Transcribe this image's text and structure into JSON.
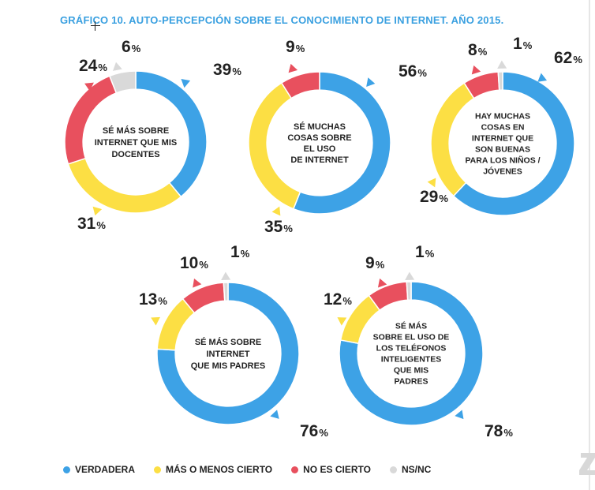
{
  "title": "GRÁFICO 10. AUTO-PERCEPCIÓN SOBRE EL CONOCIMIENTO DE INTERNET. AÑO 2015.",
  "colors": {
    "verdadera": "#3da2e6",
    "mas_o_menos": "#fcdf44",
    "no_es_cierto": "#e8505e",
    "nsnc": "#d9d9d9",
    "title": "#3aa0e0"
  },
  "legend": [
    {
      "label": "VERDADERA",
      "color_key": "verdadera"
    },
    {
      "label": "MÁS O MENOS CIERTO",
      "color_key": "mas_o_menos"
    },
    {
      "label": "NO ES CIERTO",
      "color_key": "no_es_cierto"
    },
    {
      "label": "NS/NC",
      "color_key": "nsnc"
    }
  ],
  "chart_data": [
    {
      "type": "pie",
      "title": "SÉ MÁS SOBRE INTERNET QUE MIS DOCENTES",
      "categories": [
        "VERDADERA",
        "MÁS O MENOS CIERTO",
        "NO ES CIERTO",
        "NS/NC"
      ],
      "values": [
        39,
        31,
        24,
        6
      ],
      "unit": "%"
    },
    {
      "type": "pie",
      "title": "SÉ MUCHAS COSAS SOBRE EL USO DE INTERNET",
      "categories": [
        "VERDADERA",
        "MÁS O MENOS CIERTO",
        "NO ES CIERTO"
      ],
      "values": [
        56,
        35,
        9
      ],
      "unit": "%"
    },
    {
      "type": "pie",
      "title": "HAY MUCHAS COSAS EN INTERNET QUE SON BUENAS PARA LOS NIÑOS / JÓVENES",
      "categories": [
        "VERDADERA",
        "MÁS O MENOS CIERTO",
        "NO ES CIERTO",
        "NS/NC"
      ],
      "values": [
        62,
        29,
        8,
        1
      ],
      "unit": "%"
    },
    {
      "type": "pie",
      "title": "SÉ MÁS SOBRE INTERNET QUE MIS PADRES",
      "categories": [
        "VERDADERA",
        "MÁS O MENOS CIERTO",
        "NO ES CIERTO",
        "NS/NC"
      ],
      "values": [
        76,
        13,
        10,
        1
      ],
      "unit": "%"
    },
    {
      "type": "pie",
      "title": "SÉ MÁS SOBRE EL USO DE LOS TELÉFONOS INTELIGENTES QUE MIS PADRES",
      "categories": [
        "VERDADERA",
        "MÁS O MENOS CIERTO",
        "NO ES CIERTO",
        "NS/NC"
      ],
      "values": [
        78,
        12,
        9,
        1
      ],
      "unit": "%"
    }
  ]
}
